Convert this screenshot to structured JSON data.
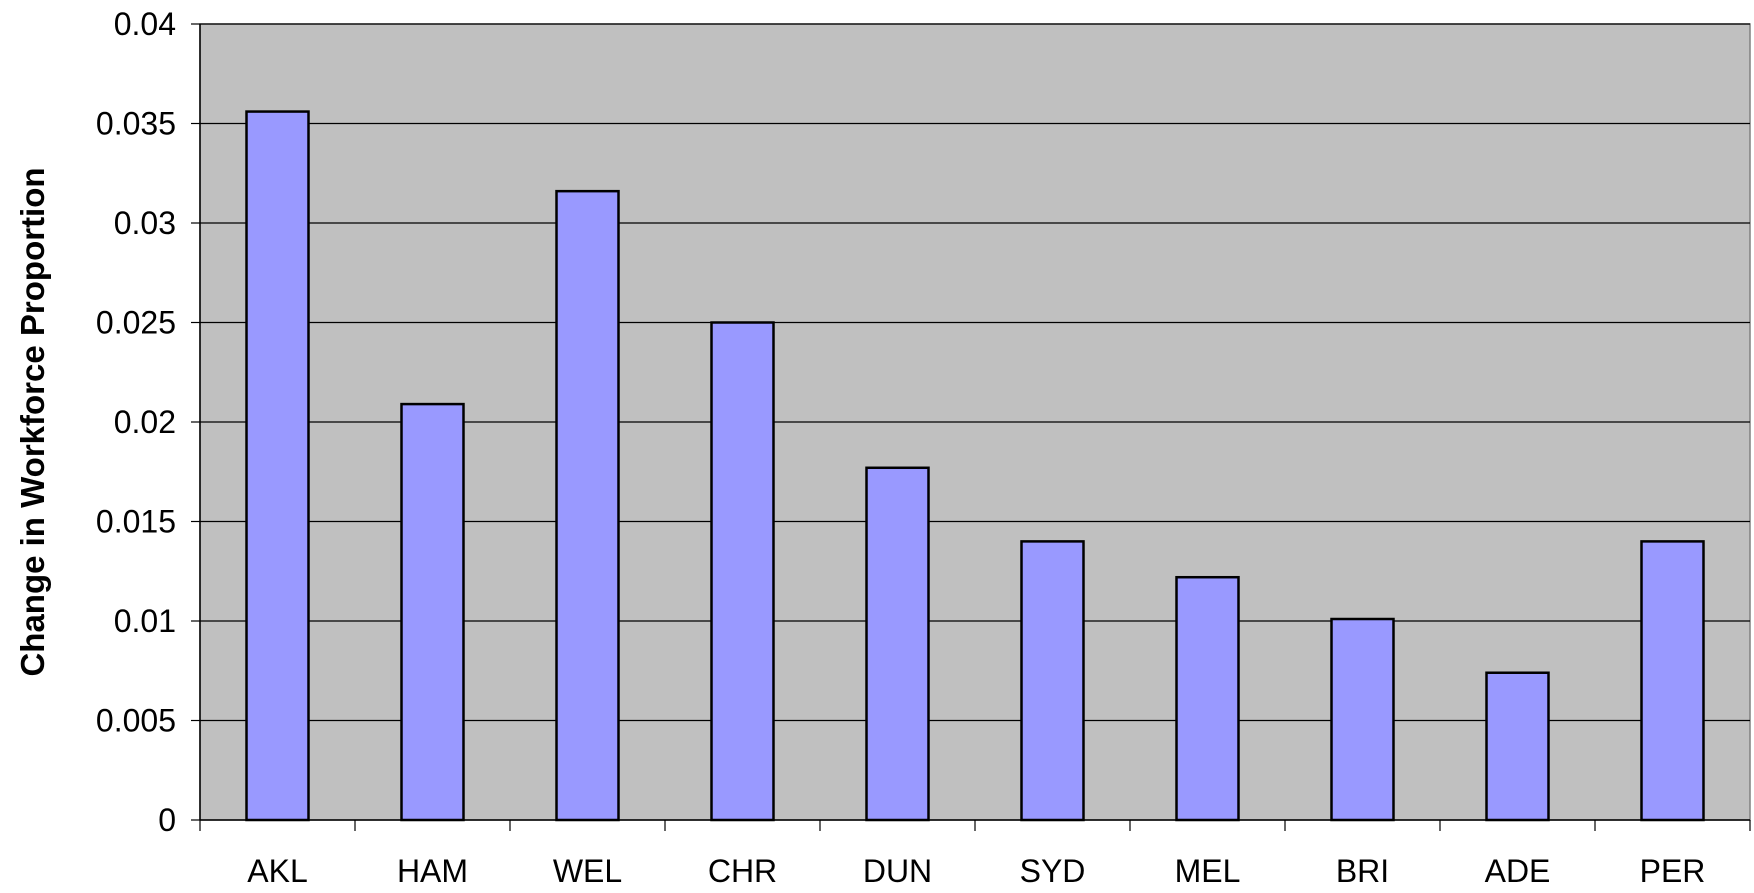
{
  "chart_data": {
    "type": "bar",
    "title": "",
    "xlabel": "",
    "ylabel": "Change in Workforce Proportion",
    "categories": [
      "AKL",
      "HAM",
      "WEL",
      "CHR",
      "DUN",
      "SYD",
      "MEL",
      "BRI",
      "ADE",
      "PER"
    ],
    "values": [
      0.0356,
      0.0209,
      0.0316,
      0.025,
      0.0177,
      0.014,
      0.0122,
      0.0101,
      0.0074,
      0.014
    ],
    "ylim": [
      0,
      0.04
    ],
    "yticks": [
      "0",
      "0.005",
      "0.01",
      "0.015",
      "0.02",
      "0.025",
      "0.03",
      "0.035",
      "0.04"
    ],
    "grid": true,
    "legend": "none",
    "colors": {
      "plot_background": "#c0c0c0",
      "bar_fill": "#9999ff",
      "bar_stroke": "#000000",
      "gridline": "#000000"
    }
  }
}
